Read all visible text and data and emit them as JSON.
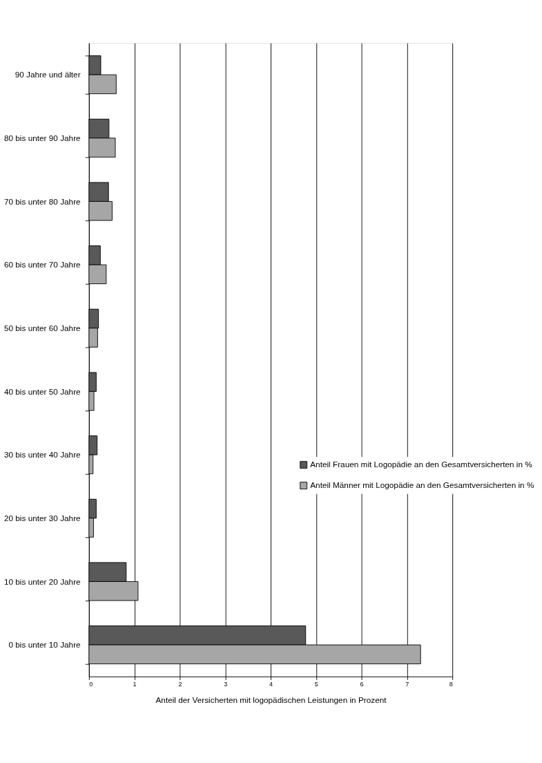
{
  "chart_data": {
    "type": "bar",
    "orientation": "horizontal",
    "xlabel": "Anteil der Versicherten mit logopädischen Leistungen in Prozent",
    "categories": [
      "90 Jahre und älter",
      "80 bis unter 90 Jahre",
      "70 bis unter 80 Jahre",
      "60 bis unter 70 Jahre",
      "50 bis unter 60 Jahre",
      "40 bis unter 50 Jahre",
      "30 bis unter 40 Jahre",
      "20 bis unter 30 Jahre",
      "10 bis unter 20 Jahre",
      "0 bis unter 10 Jahre"
    ],
    "series": [
      {
        "name": "Anteil Frauen mit Logopädie an den Gesamtversicherten in %",
        "color": "#595959",
        "values": [
          0.26,
          0.44,
          0.43,
          0.25,
          0.21,
          0.16,
          0.18,
          0.16,
          0.82,
          4.77
        ]
      },
      {
        "name": "Anteil Männer mit Logopädie an den Gesamtversicherten in %",
        "color": "#a6a6a6",
        "values": [
          0.6,
          0.58,
          0.51,
          0.38,
          0.19,
          0.11,
          0.09,
          0.1,
          1.08,
          7.3
        ]
      }
    ],
    "xlim": [
      0,
      8
    ],
    "xticks": [
      0,
      1,
      2,
      3,
      4,
      5,
      6,
      7,
      8
    ],
    "grid": "x",
    "legend": "bottom right"
  }
}
